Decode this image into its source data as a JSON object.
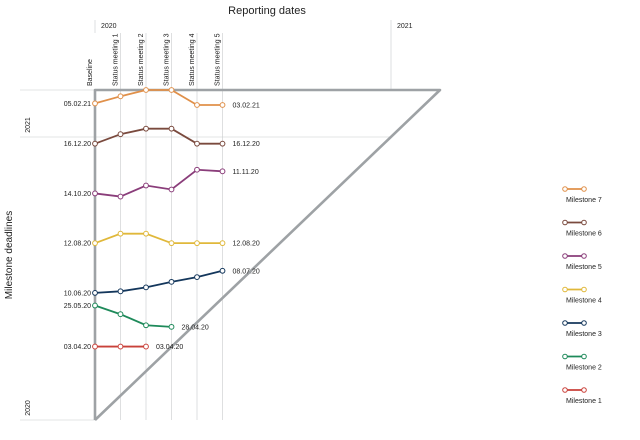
{
  "chart_data": {
    "type": "line",
    "title": "Reporting dates",
    "ylabel": "Milestone deadlines",
    "reporting_dates": [
      "Baseline",
      "Status meeting 1",
      "Status meeting 2",
      "Status meeting 3",
      "Status meeting 4",
      "Status meeting 5"
    ],
    "reporting_year_labels": [
      "2020",
      "2021"
    ],
    "deadline_year_labels": [
      "2021",
      "2020"
    ],
    "deadline_axis_range": [
      "2020-01-01",
      "2021-02-22"
    ],
    "series": [
      {
        "name": "Milestone 7",
        "color": "#e0904a",
        "start_label": "05.02.21",
        "end_label": "03.02.21",
        "values": [
          "2021-02-05",
          "2021-02-14",
          "2021-02-22",
          "2021-02-22",
          "2021-02-03",
          "2021-02-03"
        ]
      },
      {
        "name": "Milestone 6",
        "color": "#7a4a3e",
        "start_label": "16.12.20",
        "end_label": "16.12.20",
        "values": [
          "2020-12-16",
          "2020-12-28",
          "2021-01-04",
          "2021-01-04",
          "2020-12-16",
          "2020-12-16"
        ]
      },
      {
        "name": "Milestone 5",
        "color": "#8a3d7a",
        "start_label": "14.10.20",
        "end_label": "11.11.20",
        "values": [
          "2020-10-14",
          "2020-10-10",
          "2020-10-24",
          "2020-10-19",
          "2020-11-13",
          "2020-11-11"
        ]
      },
      {
        "name": "Milestone 4",
        "color": "#e0b83a",
        "start_label": "12.08.20",
        "end_label": "12.08.20",
        "values": [
          "2020-08-12",
          "2020-08-24",
          "2020-08-24",
          "2020-08-12",
          "2020-08-12",
          "2020-08-12"
        ]
      },
      {
        "name": "Milestone 3",
        "color": "#14375c",
        "start_label": "10.06.20",
        "end_label": "08.07.20",
        "values": [
          "2020-06-10",
          "2020-06-12",
          "2020-06-17",
          "2020-06-24",
          "2020-06-30",
          "2020-07-08"
        ]
      },
      {
        "name": "Milestone 2",
        "color": "#1e8a5a",
        "start_label": "25.05.20",
        "end_label": "28.04.20",
        "values": [
          "2020-05-25",
          "2020-05-14",
          "2020-04-30",
          "2020-04-28"
        ]
      },
      {
        "name": "Milestone 1",
        "color": "#c9413a",
        "start_label": "03.04.20",
        "end_label": "03.04.20",
        "values": [
          "2020-04-03",
          "2020-04-03",
          "2020-04-03"
        ]
      }
    ],
    "legend_position": "right",
    "grid": false
  },
  "colors": {
    "frame": "#9ea2a5",
    "guide": "#c8cacc",
    "marker_fill": "#ffffff"
  }
}
